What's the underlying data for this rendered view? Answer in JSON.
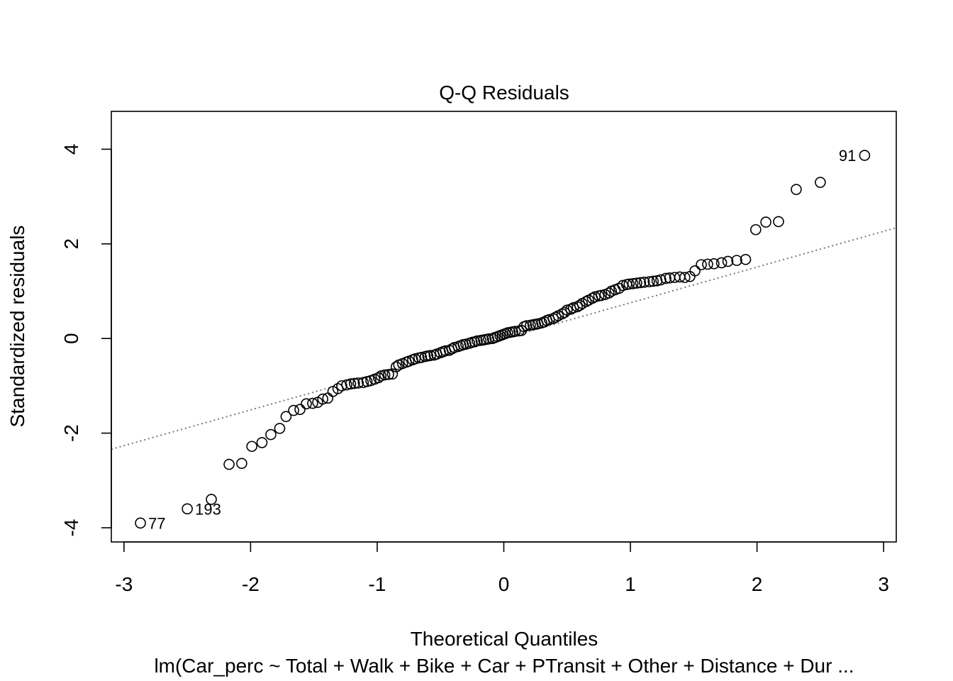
{
  "chart_data": {
    "type": "scatter",
    "title": "Q-Q Residuals",
    "xlabel": "Theoretical Quantiles",
    "ylabel": "Standardized residuals",
    "subtitle": "lm(Car_perc ~ Total + Walk + Bike + Car + PTransit + Other + Distance + Dur ...",
    "xlim": [
      -3.1,
      3.1
    ],
    "ylim": [
      -4.3,
      4.8
    ],
    "x_ticks": [
      -3,
      -2,
      -1,
      0,
      1,
      2,
      3
    ],
    "x_tick_labels": [
      "-3",
      "-2",
      "-1",
      "0",
      "1",
      "2",
      "3"
    ],
    "y_ticks": [
      -4,
      -2,
      0,
      2,
      4
    ],
    "y_tick_labels": [
      "-4",
      "-2",
      "0",
      "2",
      "4"
    ],
    "reference_line": {
      "style": "dotted",
      "color": "#777777",
      "intercept": 0.0,
      "slope": 0.755
    },
    "point_labels": [
      {
        "x": 2.85,
        "y": 3.87,
        "text": "91",
        "side": "left"
      },
      {
        "x": -2.5,
        "y": -3.6,
        "text": "193",
        "side": "right"
      },
      {
        "x": -2.87,
        "y": -3.9,
        "text": "77",
        "side": "right"
      }
    ],
    "grid": false,
    "marker": "open-circle",
    "x": [
      -2.87,
      -2.5,
      -2.31,
      -2.17,
      -2.07,
      -1.99,
      -1.91,
      -1.84,
      -1.77,
      -1.72,
      -1.66,
      -1.61,
      -1.56,
      -1.51,
      -1.47,
      -1.43,
      -1.39,
      -1.35,
      -1.31,
      -1.28,
      -1.24,
      -1.21,
      -1.18,
      -1.15,
      -1.11,
      -1.08,
      -1.05,
      -1.02,
      -0.99,
      -0.97,
      -0.94,
      -0.91,
      -0.88,
      -0.85,
      -0.83,
      -0.8,
      -0.77,
      -0.75,
      -0.72,
      -0.7,
      -0.67,
      -0.65,
      -0.62,
      -0.6,
      -0.58,
      -0.55,
      -0.53,
      -0.5,
      -0.48,
      -0.46,
      -0.43,
      -0.41,
      -0.39,
      -0.36,
      -0.34,
      -0.32,
      -0.3,
      -0.27,
      -0.25,
      -0.23,
      -0.21,
      -0.18,
      -0.16,
      -0.14,
      -0.12,
      -0.09,
      -0.07,
      -0.05,
      -0.03,
      -0.01,
      0.01,
      0.03,
      0.05,
      0.07,
      0.09,
      0.12,
      0.14,
      0.16,
      0.18,
      0.21,
      0.23,
      0.25,
      0.27,
      0.3,
      0.32,
      0.34,
      0.36,
      0.39,
      0.41,
      0.43,
      0.46,
      0.48,
      0.5,
      0.53,
      0.55,
      0.58,
      0.6,
      0.62,
      0.65,
      0.67,
      0.7,
      0.72,
      0.75,
      0.77,
      0.8,
      0.83,
      0.85,
      0.88,
      0.91,
      0.94,
      0.97,
      0.99,
      1.02,
      1.05,
      1.08,
      1.11,
      1.15,
      1.18,
      1.21,
      1.24,
      1.28,
      1.31,
      1.35,
      1.39,
      1.43,
      1.47,
      1.51,
      1.56,
      1.61,
      1.66,
      1.72,
      1.77,
      1.84,
      1.91,
      1.99,
      2.07,
      2.17,
      2.31,
      2.5,
      2.85
    ],
    "y": [
      -3.9,
      -3.6,
      -3.4,
      -2.66,
      -2.64,
      -2.28,
      -2.2,
      -2.03,
      -1.9,
      -1.65,
      -1.52,
      -1.5,
      -1.38,
      -1.37,
      -1.35,
      -1.28,
      -1.26,
      -1.12,
      -1.06,
      -1.0,
      -0.98,
      -0.96,
      -0.95,
      -0.94,
      -0.93,
      -0.91,
      -0.89,
      -0.86,
      -0.83,
      -0.79,
      -0.77,
      -0.76,
      -0.75,
      -0.6,
      -0.56,
      -0.53,
      -0.5,
      -0.48,
      -0.45,
      -0.43,
      -0.41,
      -0.4,
      -0.38,
      -0.37,
      -0.36,
      -0.35,
      -0.33,
      -0.3,
      -0.28,
      -0.26,
      -0.25,
      -0.22,
      -0.19,
      -0.17,
      -0.15,
      -0.13,
      -0.12,
      -0.1,
      -0.08,
      -0.07,
      -0.05,
      -0.04,
      -0.03,
      -0.02,
      -0.01,
      0.0,
      0.02,
      0.04,
      0.06,
      0.08,
      0.1,
      0.12,
      0.13,
      0.14,
      0.15,
      0.16,
      0.17,
      0.25,
      0.27,
      0.28,
      0.29,
      0.3,
      0.31,
      0.33,
      0.35,
      0.38,
      0.4,
      0.42,
      0.45,
      0.48,
      0.52,
      0.55,
      0.6,
      0.62,
      0.65,
      0.67,
      0.7,
      0.74,
      0.78,
      0.81,
      0.85,
      0.88,
      0.9,
      0.91,
      0.93,
      0.96,
      1.0,
      1.03,
      1.06,
      1.12,
      1.14,
      1.15,
      1.16,
      1.17,
      1.18,
      1.19,
      1.2,
      1.21,
      1.22,
      1.24,
      1.27,
      1.28,
      1.29,
      1.3,
      1.29,
      1.31,
      1.43,
      1.56,
      1.57,
      1.58,
      1.6,
      1.63,
      1.65,
      1.67,
      2.3,
      2.46,
      2.47,
      3.15,
      3.3,
      3.87
    ]
  }
}
